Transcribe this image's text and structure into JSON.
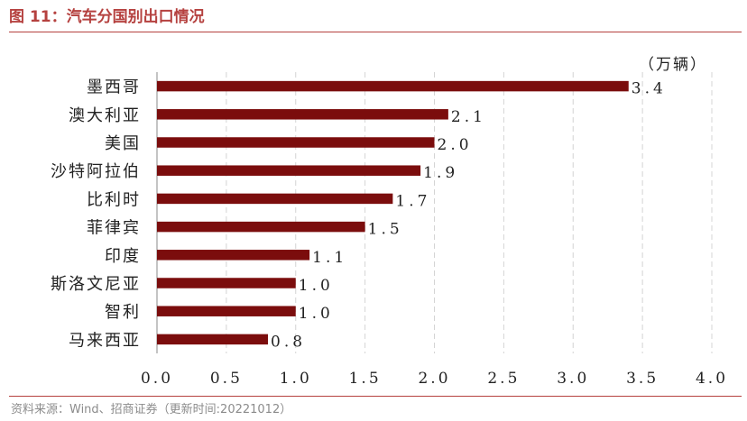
{
  "figure": {
    "title": "图 11：汽车分国别出口情况",
    "source": "资料来源：Wind、招商证券（更新时间:20221012）"
  },
  "chart_data": {
    "type": "bar",
    "orientation": "horizontal",
    "unit": "（万辆）",
    "categories": [
      "墨西哥",
      "澳大利亚",
      "美国",
      "沙特阿拉伯",
      "比利时",
      "菲律宾",
      "印度",
      "斯洛文尼亚",
      "智利",
      "马来西亚"
    ],
    "values": [
      3.4,
      2.1,
      2.0,
      1.9,
      1.7,
      1.5,
      1.1,
      1.0,
      1.0,
      0.8
    ],
    "value_labels": [
      "3.4",
      "2.1",
      "2.0",
      "1.9",
      "1.7",
      "1.5",
      "1.1",
      "1.0",
      "1.0",
      "0.8"
    ],
    "xlim": [
      0,
      4
    ],
    "xticks": [
      "0.0",
      "0.5",
      "1.0",
      "1.5",
      "2.0",
      "2.5",
      "3.0",
      "3.5",
      "4.0"
    ],
    "grid": "vertical dashed",
    "legend": "none",
    "bar_color": "#7b0d0d",
    "accent_color": "#b5413f"
  }
}
